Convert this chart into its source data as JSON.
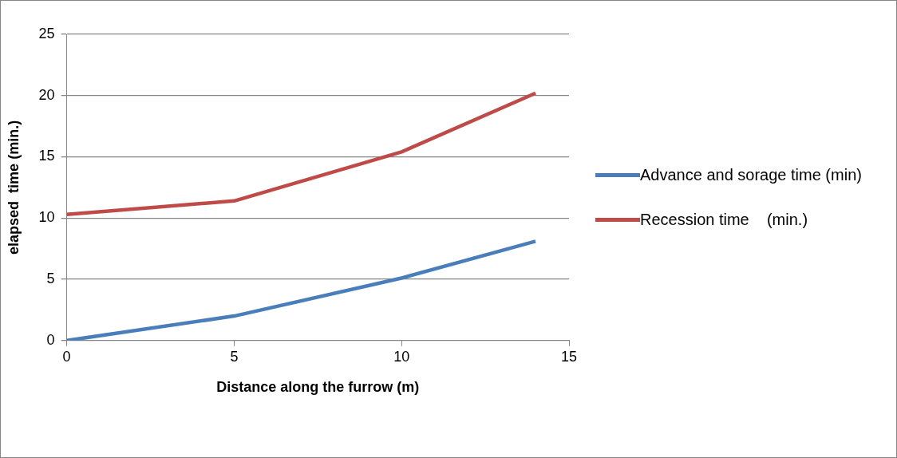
{
  "chart_data": {
    "type": "line",
    "xlabel": "Distance along the furrow (m)",
    "ylabel": "elapsed  time (min.)",
    "xlim": [
      0,
      15
    ],
    "xticks": [
      0,
      5,
      10,
      15
    ],
    "ylim": [
      0,
      25
    ],
    "yticks": [
      0,
      5,
      10,
      15,
      20,
      25
    ],
    "grid": "y",
    "legend": "right",
    "marker": "none",
    "line_style": "solid",
    "x": [
      0,
      5,
      10,
      14
    ],
    "series": [
      {
        "name": "Advance and sorage time (min)",
        "color": "#4a7ebb",
        "values": [
          0,
          2,
          5.1,
          8.1
        ]
      },
      {
        "name": "Recession time    (min.)",
        "color": "#be4b48",
        "values": [
          10.3,
          11.4,
          15.4,
          20.2
        ]
      }
    ]
  }
}
